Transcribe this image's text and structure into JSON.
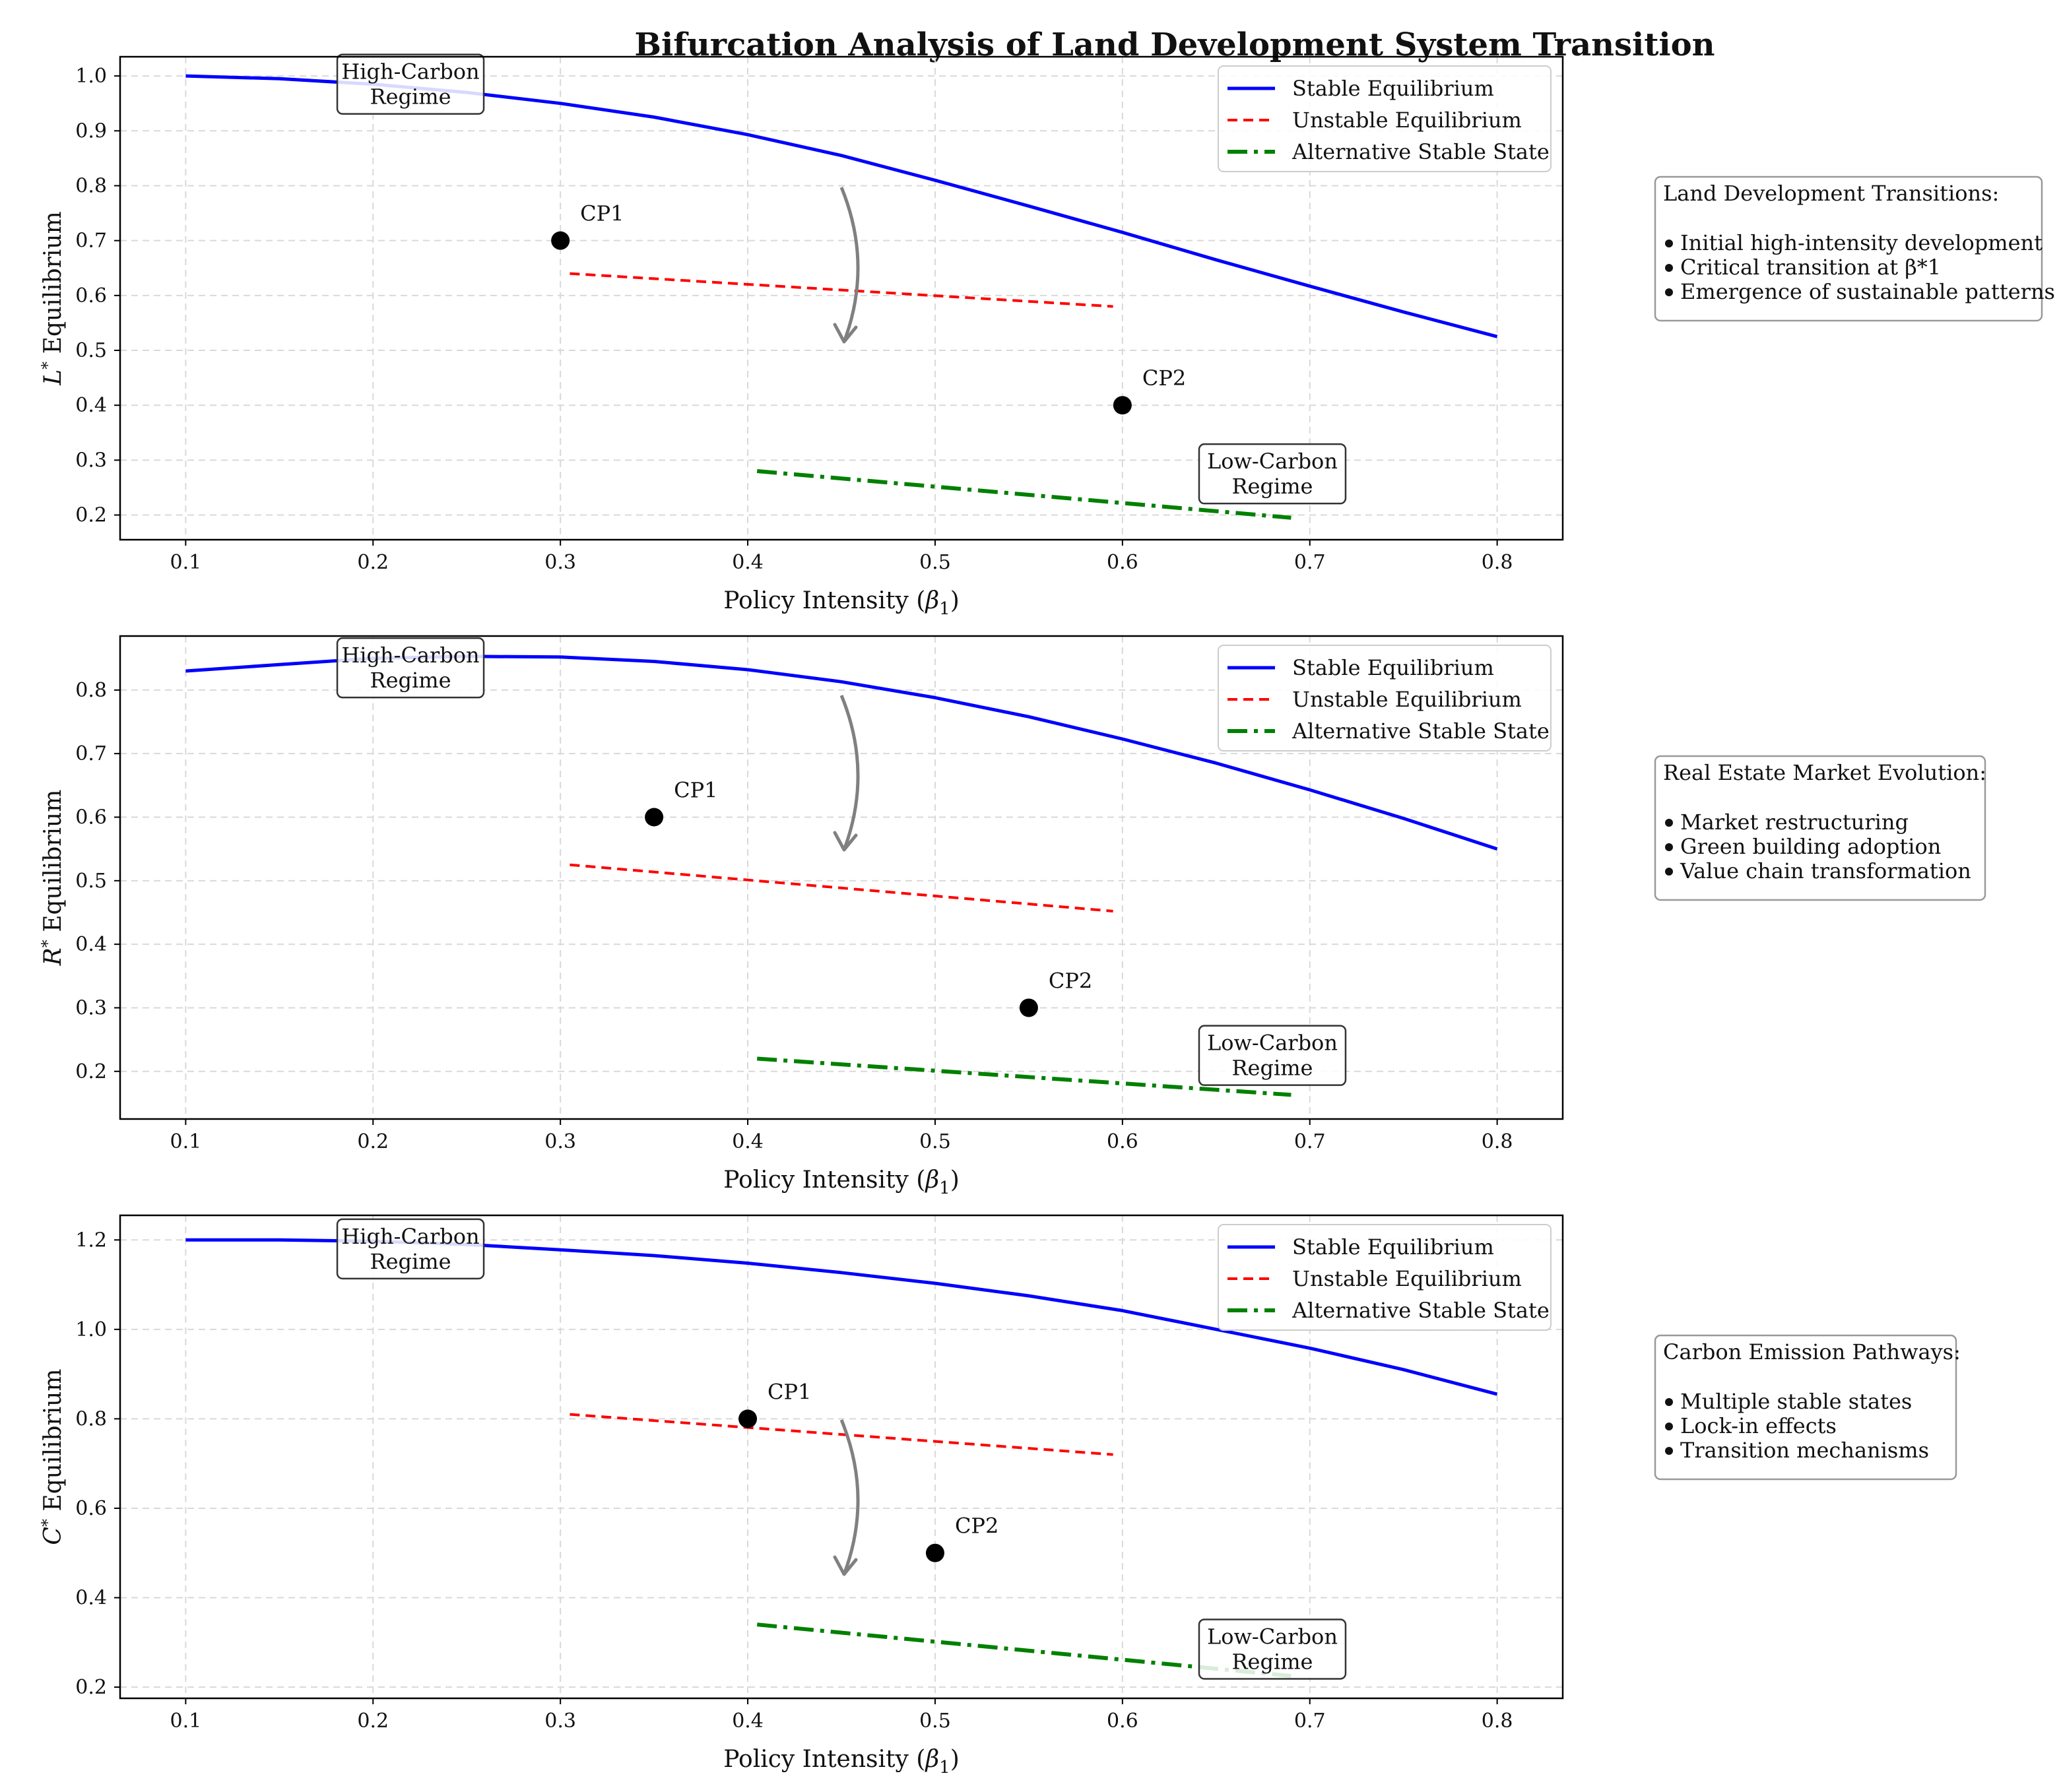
{
  "title": "Bifurcation Analysis of Land Development System Transition",
  "colors": {
    "stable": "#0000ff",
    "unstable": "#ff0000",
    "alternative": "#008000",
    "arrow": "#808080",
    "point": "#000000",
    "grid": "#d9d9d9"
  },
  "chart_data": [
    {
      "type": "line",
      "ylabel": "L* Equilibrium",
      "ylabel_symbol": "L",
      "ylabel_rest": " Equilibrium",
      "xlabel": "Policy Intensity (β1)",
      "xlabel_main": "Policy Intensity (",
      "xlabel_greek": "β",
      "xlabel_sub": "1",
      "xlabel_close": ")",
      "xlim": [
        0.065,
        0.835
      ],
      "ylim": [
        0.155,
        1.035
      ],
      "xticks": [
        "0.1",
        "0.2",
        "0.3",
        "0.4",
        "0.5",
        "0.6",
        "0.7",
        "0.8"
      ],
      "yticks": [
        "0.2",
        "0.3",
        "0.4",
        "0.5",
        "0.6",
        "0.7",
        "0.8",
        "0.9",
        "1.0"
      ],
      "grid": true,
      "legend_position": "top-right",
      "legend": [
        "Stable Equilibrium",
        "Unstable Equilibrium",
        "Alternative Stable State"
      ],
      "series": [
        {
          "name": "Stable Equilibrium",
          "style": "solid",
          "x": [
            0.1,
            0.15,
            0.2,
            0.25,
            0.3,
            0.35,
            0.4,
            0.45,
            0.5,
            0.55,
            0.6,
            0.65,
            0.7,
            0.75,
            0.8
          ],
          "y": [
            1.0,
            0.995,
            0.985,
            0.97,
            0.95,
            0.925,
            0.893,
            0.855,
            0.81,
            0.763,
            0.715,
            0.665,
            0.617,
            0.57,
            0.525
          ]
        },
        {
          "name": "Unstable Equilibrium",
          "style": "dashed",
          "x": [
            0.305,
            0.595
          ],
          "y": [
            0.64,
            0.58
          ]
        },
        {
          "name": "Alternative Stable State",
          "style": "dashdot",
          "x": [
            0.405,
            0.69
          ],
          "y": [
            0.28,
            0.195
          ]
        }
      ],
      "critical_points": [
        {
          "label": "CP1",
          "x": 0.3,
          "y": 0.7
        },
        {
          "label": "CP2",
          "x": 0.6,
          "y": 0.4
        }
      ],
      "arrow": {
        "x_from": 0.45,
        "y_from": 0.8,
        "x_to": 0.45,
        "y_to": 0.5
      },
      "regime_high": {
        "line1": "High-Carbon",
        "line2": "Regime",
        "x": 0.22,
        "y": 0.985
      },
      "regime_low": {
        "line1": "Low-Carbon",
        "line2": "Regime",
        "x": 0.68,
        "y": 0.275
      },
      "note": {
        "heading": "Land Development Transitions:",
        "items": [
          "Initial high-intensity development",
          "Critical transition at β*1",
          "Emergence of sustainable patterns"
        ]
      }
    },
    {
      "type": "line",
      "ylabel": "R* Equilibrium",
      "ylabel_symbol": "R",
      "ylabel_rest": " Equilibrium",
      "xlabel": "Policy Intensity (β1)",
      "xlabel_main": "Policy Intensity (",
      "xlabel_greek": "β",
      "xlabel_sub": "1",
      "xlabel_close": ")",
      "xlim": [
        0.065,
        0.835
      ],
      "ylim": [
        0.125,
        0.885
      ],
      "xticks": [
        "0.1",
        "0.2",
        "0.3",
        "0.4",
        "0.5",
        "0.6",
        "0.7",
        "0.8"
      ],
      "yticks": [
        "0.2",
        "0.3",
        "0.4",
        "0.5",
        "0.6",
        "0.7",
        "0.8"
      ],
      "grid": true,
      "legend_position": "top-right",
      "legend": [
        "Stable Equilibrium",
        "Unstable Equilibrium",
        "Alternative Stable State"
      ],
      "series": [
        {
          "name": "Stable Equilibrium",
          "style": "solid",
          "x": [
            0.1,
            0.15,
            0.2,
            0.25,
            0.3,
            0.35,
            0.4,
            0.45,
            0.5,
            0.55,
            0.6,
            0.65,
            0.7,
            0.75,
            0.8
          ],
          "y": [
            0.83,
            0.84,
            0.85,
            0.853,
            0.852,
            0.845,
            0.832,
            0.813,
            0.788,
            0.758,
            0.723,
            0.685,
            0.643,
            0.598,
            0.55
          ]
        },
        {
          "name": "Unstable Equilibrium",
          "style": "dashed",
          "x": [
            0.305,
            0.595
          ],
          "y": [
            0.525,
            0.452
          ]
        },
        {
          "name": "Alternative Stable State",
          "style": "dashdot",
          "x": [
            0.405,
            0.69
          ],
          "y": [
            0.22,
            0.163
          ]
        }
      ],
      "critical_points": [
        {
          "label": "CP1",
          "x": 0.35,
          "y": 0.6
        },
        {
          "label": "CP2",
          "x": 0.55,
          "y": 0.3
        }
      ],
      "arrow": {
        "x_from": 0.45,
        "y_from": 0.8,
        "x_to": 0.45,
        "y_to": 0.5
      },
      "regime_high": {
        "line1": "High-Carbon",
        "line2": "Regime",
        "x": 0.22,
        "y": 0.835
      },
      "regime_low": {
        "line1": "Low-Carbon",
        "line2": "Regime",
        "x": 0.68,
        "y": 0.225
      },
      "note": {
        "heading": "Real Estate Market Evolution:",
        "items": [
          "Market restructuring",
          "Green building adoption",
          "Value chain transformation"
        ]
      }
    },
    {
      "type": "line",
      "ylabel": "C* Equilibrium",
      "ylabel_symbol": "C",
      "ylabel_rest": " Equilibrium",
      "xlabel": "Policy Intensity (β1)",
      "xlabel_main": "Policy Intensity (",
      "xlabel_greek": "β",
      "xlabel_sub": "1",
      "xlabel_close": ")",
      "xlim": [
        0.065,
        0.835
      ],
      "ylim": [
        0.175,
        1.255
      ],
      "xticks": [
        "0.1",
        "0.2",
        "0.3",
        "0.4",
        "0.5",
        "0.6",
        "0.7",
        "0.8"
      ],
      "yticks": [
        "0.2",
        "0.4",
        "0.6",
        "0.8",
        "1.0",
        "1.2"
      ],
      "grid": true,
      "legend_position": "top-right",
      "legend": [
        "Stable Equilibrium",
        "Unstable Equilibrium",
        "Alternative Stable State"
      ],
      "series": [
        {
          "name": "Stable Equilibrium",
          "style": "solid",
          "x": [
            0.1,
            0.15,
            0.2,
            0.25,
            0.3,
            0.35,
            0.4,
            0.45,
            0.5,
            0.55,
            0.6,
            0.65,
            0.7,
            0.75,
            0.8
          ],
          "y": [
            1.2,
            1.2,
            1.197,
            1.19,
            1.178,
            1.165,
            1.148,
            1.127,
            1.103,
            1.075,
            1.042,
            1.0,
            0.958,
            0.91,
            0.855
          ]
        },
        {
          "name": "Unstable Equilibrium",
          "style": "dashed",
          "x": [
            0.305,
            0.595
          ],
          "y": [
            0.81,
            0.72
          ]
        },
        {
          "name": "Alternative Stable State",
          "style": "dashdot",
          "x": [
            0.405,
            0.69
          ],
          "y": [
            0.34,
            0.225
          ]
        }
      ],
      "critical_points": [
        {
          "label": "CP1",
          "x": 0.4,
          "y": 0.8
        },
        {
          "label": "CP2",
          "x": 0.5,
          "y": 0.5
        }
      ],
      "arrow": {
        "x_from": 0.45,
        "y_from": 0.8,
        "x_to": 0.45,
        "y_to": 0.5
      },
      "regime_high": {
        "line1": "High-Carbon",
        "line2": "Regime",
        "x": 0.22,
        "y": 1.18
      },
      "regime_low": {
        "line1": "Low-Carbon",
        "line2": "Regime",
        "x": 0.68,
        "y": 0.285
      },
      "note": {
        "heading": "Carbon Emission Pathways:",
        "items": [
          "Multiple stable states",
          "Lock-in effects",
          "Transition mechanisms"
        ]
      }
    }
  ]
}
